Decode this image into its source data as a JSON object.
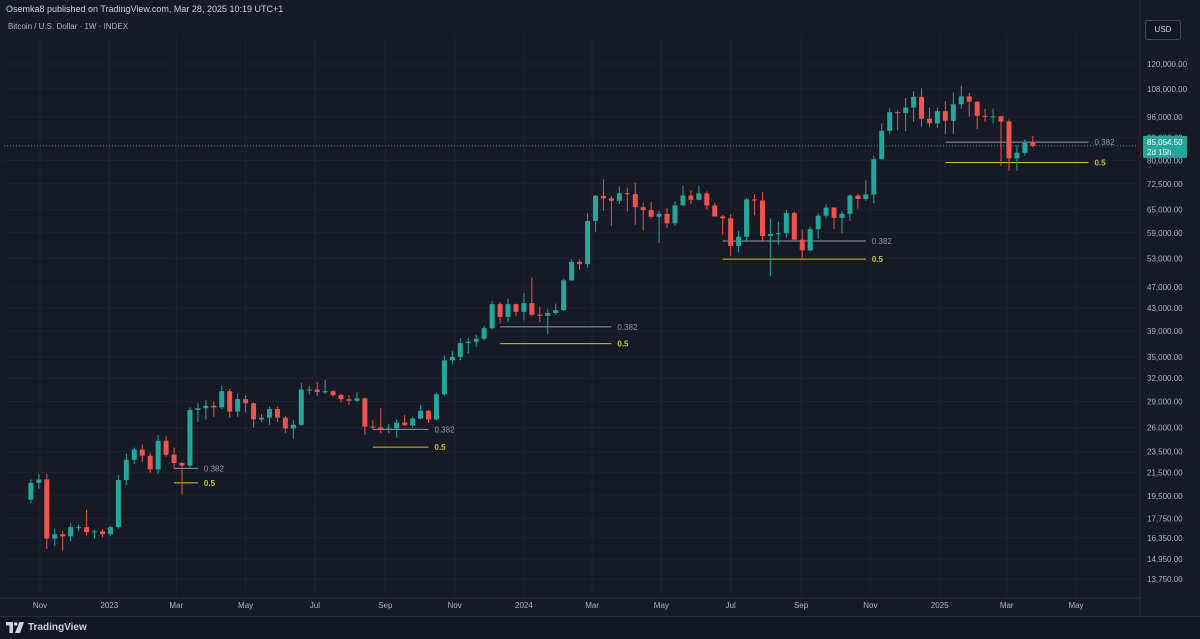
{
  "header": {
    "publisher": "Osemka8 published on TradingView.com, Mar 28, 2025 10:19 UTC+1",
    "symbol": "Bitcoin / U.S. Dollar · 1W · INDEX",
    "currency": "USD"
  },
  "footer": {
    "brand": "TradingView",
    "logo_icon": "tradingview-logo-icon"
  },
  "colors": {
    "up": "#26a69a",
    "down": "#ef5350",
    "fib382": "#9598a1",
    "fib05": "#d4c22c",
    "background": "#161a25",
    "grid": "#1f2330",
    "price_tag": "#26a69a"
  },
  "chart_data": {
    "type": "candlestick",
    "x_ticks": [
      "Nov",
      "2023",
      "Mar",
      "May",
      "Jul",
      "Sep",
      "Nov",
      "2024",
      "Mar",
      "May",
      "Jul",
      "Sep",
      "Nov",
      "2025",
      "Mar",
      "May"
    ],
    "x_tick_dates": [
      "2022-11-01",
      "2023-01-01",
      "2023-03-01",
      "2023-05-01",
      "2023-07-01",
      "2023-09-01",
      "2023-11-01",
      "2024-01-01",
      "2024-03-01",
      "2024-05-01",
      "2024-07-01",
      "2024-09-01",
      "2024-11-01",
      "2025-01-01",
      "2025-03-01",
      "2025-05-01"
    ],
    "y_ticks": [
      "120,000.00",
      "108,000.00",
      "96,000.00",
      "88,000.00",
      "80,000.00",
      "72,500.00",
      "65,000.00",
      "59,000.00",
      "53,000.00",
      "47,000.00",
      "43,000.00",
      "39,000.00",
      "35,000.00",
      "32,000.00",
      "29,000.00",
      "26,000.00",
      "23,500.00",
      "21,500.00",
      "19,500.00",
      "17,750.00",
      "16,350.00",
      "14,950.00",
      "13,750.00"
    ],
    "y_tick_values": [
      120000,
      108000,
      96000,
      88000,
      80000,
      72500,
      65000,
      59000,
      53000,
      47000,
      43000,
      39000,
      35000,
      32000,
      29000,
      26000,
      23500,
      21500,
      19500,
      17750,
      16350,
      14950,
      13750
    ],
    "y_scale": "log",
    "ylim": [
      12800,
      135000
    ],
    "last_price": {
      "value": 85054.5,
      "label": "85,054.50",
      "countdown": "2d 15h"
    },
    "candles": [
      {
        "t": "2022-10-24",
        "o": 19200,
        "h": 20900,
        "l": 18900,
        "c": 20600
      },
      {
        "t": "2022-10-31",
        "o": 20600,
        "h": 21400,
        "l": 20100,
        "c": 20900
      },
      {
        "t": "2022-11-07",
        "o": 20900,
        "h": 21400,
        "l": 15600,
        "c": 16300
      },
      {
        "t": "2022-11-14",
        "o": 16300,
        "h": 17000,
        "l": 15800,
        "c": 16600
      },
      {
        "t": "2022-11-21",
        "o": 16600,
        "h": 16800,
        "l": 15500,
        "c": 16450
      },
      {
        "t": "2022-11-28",
        "o": 16450,
        "h": 17400,
        "l": 16100,
        "c": 17100
      },
      {
        "t": "2022-12-05",
        "o": 17100,
        "h": 17300,
        "l": 16800,
        "c": 17100
      },
      {
        "t": "2022-12-12",
        "o": 17100,
        "h": 18400,
        "l": 16500,
        "c": 16750
      },
      {
        "t": "2022-12-19",
        "o": 16750,
        "h": 16900,
        "l": 16300,
        "c": 16800
      },
      {
        "t": "2022-12-26",
        "o": 16800,
        "h": 16950,
        "l": 16400,
        "c": 16600
      },
      {
        "t": "2023-01-02",
        "o": 16600,
        "h": 17200,
        "l": 16500,
        "c": 17100
      },
      {
        "t": "2023-01-09",
        "o": 17100,
        "h": 21300,
        "l": 17000,
        "c": 20850
      },
      {
        "t": "2023-01-16",
        "o": 20850,
        "h": 23300,
        "l": 20400,
        "c": 22700
      },
      {
        "t": "2023-01-23",
        "o": 22700,
        "h": 23900,
        "l": 22300,
        "c": 23700
      },
      {
        "t": "2023-01-30",
        "o": 23700,
        "h": 24200,
        "l": 22500,
        "c": 23100
      },
      {
        "t": "2023-02-06",
        "o": 23100,
        "h": 23400,
        "l": 21500,
        "c": 21800
      },
      {
        "t": "2023-02-13",
        "o": 21800,
        "h": 25200,
        "l": 21400,
        "c": 24600
      },
      {
        "t": "2023-02-20",
        "o": 24600,
        "h": 25100,
        "l": 23000,
        "c": 23200
      },
      {
        "t": "2023-02-27",
        "o": 23200,
        "h": 23900,
        "l": 21900,
        "c": 22400
      },
      {
        "t": "2023-03-06",
        "o": 22400,
        "h": 22500,
        "l": 19600,
        "c": 22150
      },
      {
        "t": "2023-03-13",
        "o": 22150,
        "h": 28300,
        "l": 21900,
        "c": 28000
      },
      {
        "t": "2023-03-20",
        "o": 28000,
        "h": 28800,
        "l": 26600,
        "c": 28200
      },
      {
        "t": "2023-03-27",
        "o": 28200,
        "h": 29200,
        "l": 26900,
        "c": 28500
      },
      {
        "t": "2023-04-03",
        "o": 28500,
        "h": 29000,
        "l": 27200,
        "c": 28300
      },
      {
        "t": "2023-04-10",
        "o": 28300,
        "h": 31000,
        "l": 28100,
        "c": 30300
      },
      {
        "t": "2023-04-17",
        "o": 30300,
        "h": 30600,
        "l": 27100,
        "c": 27800
      },
      {
        "t": "2023-04-24",
        "o": 27800,
        "h": 30000,
        "l": 27200,
        "c": 29300
      },
      {
        "t": "2023-05-01",
        "o": 29300,
        "h": 29800,
        "l": 27700,
        "c": 28800
      },
      {
        "t": "2023-05-08",
        "o": 28800,
        "h": 28900,
        "l": 26000,
        "c": 26900
      },
      {
        "t": "2023-05-15",
        "o": 26900,
        "h": 27500,
        "l": 26600,
        "c": 27100
      },
      {
        "t": "2023-05-22",
        "o": 27100,
        "h": 28400,
        "l": 26300,
        "c": 28100
      },
      {
        "t": "2023-05-29",
        "o": 28100,
        "h": 28400,
        "l": 26600,
        "c": 27100
      },
      {
        "t": "2023-06-05",
        "o": 27100,
        "h": 27300,
        "l": 25400,
        "c": 25900
      },
      {
        "t": "2023-06-12",
        "o": 25900,
        "h": 26800,
        "l": 24800,
        "c": 26300
      },
      {
        "t": "2023-06-19",
        "o": 26300,
        "h": 31400,
        "l": 26200,
        "c": 30500
      },
      {
        "t": "2023-06-26",
        "o": 30500,
        "h": 31000,
        "l": 29900,
        "c": 30500
      },
      {
        "t": "2023-07-03",
        "o": 30500,
        "h": 31500,
        "l": 29700,
        "c": 30200
      },
      {
        "t": "2023-07-10",
        "o": 30200,
        "h": 31800,
        "l": 29950,
        "c": 30300
      },
      {
        "t": "2023-07-17",
        "o": 30300,
        "h": 30400,
        "l": 29600,
        "c": 29800
      },
      {
        "t": "2023-07-24",
        "o": 29800,
        "h": 30000,
        "l": 28900,
        "c": 29300
      },
      {
        "t": "2023-07-31",
        "o": 29300,
        "h": 29800,
        "l": 28600,
        "c": 29100
      },
      {
        "t": "2023-08-07",
        "o": 29100,
        "h": 30200,
        "l": 28900,
        "c": 29400
      },
      {
        "t": "2023-08-14",
        "o": 29400,
        "h": 29500,
        "l": 25200,
        "c": 26100
      },
      {
        "t": "2023-08-21",
        "o": 26100,
        "h": 26800,
        "l": 25800,
        "c": 26000
      },
      {
        "t": "2023-08-28",
        "o": 26000,
        "h": 28200,
        "l": 25400,
        "c": 25800
      },
      {
        "t": "2023-09-04",
        "o": 25800,
        "h": 26400,
        "l": 25400,
        "c": 25900
      },
      {
        "t": "2023-09-11",
        "o": 25900,
        "h": 26900,
        "l": 24900,
        "c": 26550
      },
      {
        "t": "2023-09-18",
        "o": 26550,
        "h": 27400,
        "l": 26200,
        "c": 26250
      },
      {
        "t": "2023-09-25",
        "o": 26250,
        "h": 27200,
        "l": 26000,
        "c": 27000
      },
      {
        "t": "2023-10-02",
        "o": 27000,
        "h": 28600,
        "l": 26900,
        "c": 27900
      },
      {
        "t": "2023-10-09",
        "o": 27900,
        "h": 28000,
        "l": 26500,
        "c": 26900
      },
      {
        "t": "2023-10-16",
        "o": 26900,
        "h": 30100,
        "l": 26800,
        "c": 29900
      },
      {
        "t": "2023-10-23",
        "o": 29900,
        "h": 35200,
        "l": 29700,
        "c": 34500
      },
      {
        "t": "2023-10-30",
        "o": 34500,
        "h": 35900,
        "l": 33900,
        "c": 35000
      },
      {
        "t": "2023-11-06",
        "o": 35000,
        "h": 37900,
        "l": 34500,
        "c": 37100
      },
      {
        "t": "2023-11-13",
        "o": 37100,
        "h": 37900,
        "l": 35500,
        "c": 37300
      },
      {
        "t": "2023-11-20",
        "o": 37300,
        "h": 38400,
        "l": 36500,
        "c": 37800
      },
      {
        "t": "2023-11-27",
        "o": 37800,
        "h": 39900,
        "l": 37500,
        "c": 39500
      },
      {
        "t": "2023-12-04",
        "o": 39500,
        "h": 44300,
        "l": 39300,
        "c": 43700
      },
      {
        "t": "2023-12-11",
        "o": 43700,
        "h": 44100,
        "l": 40300,
        "c": 41400
      },
      {
        "t": "2023-12-18",
        "o": 41400,
        "h": 44700,
        "l": 40500,
        "c": 43700
      },
      {
        "t": "2023-12-25",
        "o": 43700,
        "h": 43800,
        "l": 41600,
        "c": 42300
      },
      {
        "t": "2024-01-01",
        "o": 42300,
        "h": 45800,
        "l": 40800,
        "c": 43900
      },
      {
        "t": "2024-01-08",
        "o": 43900,
        "h": 48900,
        "l": 41500,
        "c": 41800
      },
      {
        "t": "2024-01-15",
        "o": 41800,
        "h": 43200,
        "l": 40500,
        "c": 41600
      },
      {
        "t": "2024-01-22",
        "o": 41600,
        "h": 42800,
        "l": 38500,
        "c": 42100
      },
      {
        "t": "2024-01-29",
        "o": 42100,
        "h": 43800,
        "l": 41800,
        "c": 42600
      },
      {
        "t": "2024-02-05",
        "o": 42600,
        "h": 48600,
        "l": 42500,
        "c": 48300
      },
      {
        "t": "2024-02-12",
        "o": 48300,
        "h": 52800,
        "l": 48200,
        "c": 52200
      },
      {
        "t": "2024-02-19",
        "o": 52200,
        "h": 52700,
        "l": 50500,
        "c": 51700
      },
      {
        "t": "2024-02-26",
        "o": 51700,
        "h": 64000,
        "l": 50900,
        "c": 62000
      },
      {
        "t": "2024-03-04",
        "o": 62000,
        "h": 69200,
        "l": 59200,
        "c": 68900
      },
      {
        "t": "2024-03-11",
        "o": 68900,
        "h": 73800,
        "l": 64700,
        "c": 68200
      },
      {
        "t": "2024-03-18",
        "o": 68200,
        "h": 68900,
        "l": 60800,
        "c": 67500
      },
      {
        "t": "2024-03-25",
        "o": 67500,
        "h": 71700,
        "l": 66600,
        "c": 69700
      },
      {
        "t": "2024-04-01",
        "o": 69700,
        "h": 71300,
        "l": 64500,
        "c": 69400
      },
      {
        "t": "2024-04-08",
        "o": 69400,
        "h": 72800,
        "l": 61000,
        "c": 65700
      },
      {
        "t": "2024-04-15",
        "o": 65700,
        "h": 66900,
        "l": 59600,
        "c": 64900
      },
      {
        "t": "2024-04-22",
        "o": 64900,
        "h": 67200,
        "l": 62500,
        "c": 63100
      },
      {
        "t": "2024-04-29",
        "o": 63100,
        "h": 64700,
        "l": 56500,
        "c": 63900
      },
      {
        "t": "2024-05-06",
        "o": 63900,
        "h": 65500,
        "l": 60200,
        "c": 61400
      },
      {
        "t": "2024-05-13",
        "o": 61400,
        "h": 67400,
        "l": 60800,
        "c": 66200
      },
      {
        "t": "2024-05-20",
        "o": 66200,
        "h": 71900,
        "l": 66100,
        "c": 69000
      },
      {
        "t": "2024-05-27",
        "o": 69000,
        "h": 70600,
        "l": 66500,
        "c": 67800
      },
      {
        "t": "2024-06-03",
        "o": 67800,
        "h": 71900,
        "l": 67600,
        "c": 69600
      },
      {
        "t": "2024-06-10",
        "o": 69600,
        "h": 70200,
        "l": 65000,
        "c": 66200
      },
      {
        "t": "2024-06-17",
        "o": 66200,
        "h": 66900,
        "l": 63400,
        "c": 63200
      },
      {
        "t": "2024-06-24",
        "o": 63200,
        "h": 63600,
        "l": 58500,
        "c": 62700
      },
      {
        "t": "2024-07-01",
        "o": 62700,
        "h": 63800,
        "l": 53500,
        "c": 55800
      },
      {
        "t": "2024-07-08",
        "o": 55800,
        "h": 59500,
        "l": 54300,
        "c": 58000
      },
      {
        "t": "2024-07-15",
        "o": 58000,
        "h": 68300,
        "l": 57100,
        "c": 67900
      },
      {
        "t": "2024-07-22",
        "o": 67900,
        "h": 69400,
        "l": 63500,
        "c": 67600
      },
      {
        "t": "2024-07-29",
        "o": 67600,
        "h": 70000,
        "l": 57100,
        "c": 58200
      },
      {
        "t": "2024-08-05",
        "o": 58200,
        "h": 62700,
        "l": 49100,
        "c": 58700
      },
      {
        "t": "2024-08-12",
        "o": 58700,
        "h": 61800,
        "l": 56200,
        "c": 58900
      },
      {
        "t": "2024-08-19",
        "o": 58900,
        "h": 65000,
        "l": 57800,
        "c": 64100
      },
      {
        "t": "2024-08-26",
        "o": 64100,
        "h": 64500,
        "l": 57200,
        "c": 57300
      },
      {
        "t": "2024-09-02",
        "o": 57300,
        "h": 59800,
        "l": 52600,
        "c": 54800
      },
      {
        "t": "2024-09-09",
        "o": 54800,
        "h": 60500,
        "l": 54600,
        "c": 59900
      },
      {
        "t": "2024-09-16",
        "o": 59900,
        "h": 64100,
        "l": 57500,
        "c": 63400
      },
      {
        "t": "2024-09-23",
        "o": 63400,
        "h": 66500,
        "l": 62700,
        "c": 65600
      },
      {
        "t": "2024-09-30",
        "o": 65600,
        "h": 65600,
        "l": 59900,
        "c": 62800
      },
      {
        "t": "2024-10-07",
        "o": 62800,
        "h": 64500,
        "l": 58900,
        "c": 63900
      },
      {
        "t": "2024-10-14",
        "o": 63900,
        "h": 69400,
        "l": 62000,
        "c": 69000
      },
      {
        "t": "2024-10-21",
        "o": 69000,
        "h": 69500,
        "l": 65300,
        "c": 68000
      },
      {
        "t": "2024-10-28",
        "o": 68000,
        "h": 73600,
        "l": 67500,
        "c": 69300
      },
      {
        "t": "2024-11-04",
        "o": 69300,
        "h": 81500,
        "l": 66800,
        "c": 80400
      },
      {
        "t": "2024-11-11",
        "o": 80400,
        "h": 93500,
        "l": 80200,
        "c": 90600
      },
      {
        "t": "2024-11-18",
        "o": 90600,
        "h": 99600,
        "l": 89500,
        "c": 98000
      },
      {
        "t": "2024-11-25",
        "o": 98000,
        "h": 98800,
        "l": 90800,
        "c": 97600
      },
      {
        "t": "2024-12-02",
        "o": 97600,
        "h": 104000,
        "l": 90500,
        "c": 99900
      },
      {
        "t": "2024-12-09",
        "o": 99900,
        "h": 107000,
        "l": 94200,
        "c": 104500
      },
      {
        "t": "2024-12-16",
        "o": 104500,
        "h": 108300,
        "l": 92200,
        "c": 95300
      },
      {
        "t": "2024-12-23",
        "o": 95300,
        "h": 99900,
        "l": 92000,
        "c": 93500
      },
      {
        "t": "2024-12-30",
        "o": 93500,
        "h": 99900,
        "l": 91800,
        "c": 98400
      },
      {
        "t": "2025-01-06",
        "o": 98400,
        "h": 102700,
        "l": 89300,
        "c": 94500
      },
      {
        "t": "2025-01-13",
        "o": 94500,
        "h": 106400,
        "l": 89300,
        "c": 101300
      },
      {
        "t": "2025-01-20",
        "o": 101300,
        "h": 109500,
        "l": 99400,
        "c": 104700
      },
      {
        "t": "2025-01-27",
        "o": 104700,
        "h": 106300,
        "l": 96200,
        "c": 102400
      },
      {
        "t": "2025-02-03",
        "o": 102400,
        "h": 102500,
        "l": 91200,
        "c": 96500
      },
      {
        "t": "2025-02-10",
        "o": 96500,
        "h": 99400,
        "l": 94100,
        "c": 96100
      },
      {
        "t": "2025-02-17",
        "o": 96100,
        "h": 99500,
        "l": 93400,
        "c": 96300
      },
      {
        "t": "2025-02-24",
        "o": 96300,
        "h": 96500,
        "l": 78200,
        "c": 94200
      },
      {
        "t": "2025-03-03",
        "o": 94200,
        "h": 95000,
        "l": 76600,
        "c": 80700
      },
      {
        "t": "2025-03-10",
        "o": 80700,
        "h": 85300,
        "l": 76600,
        "c": 82600
      },
      {
        "t": "2025-03-17",
        "o": 82600,
        "h": 87400,
        "l": 81600,
        "c": 86100
      },
      {
        "t": "2025-03-24",
        "o": 86100,
        "h": 88700,
        "l": 84500,
        "c": 85054.5
      }
    ],
    "fib_levels": [
      {
        "from": "2023-02-27",
        "to": "2023-03-20",
        "price": 21900,
        "label": "0.382",
        "color": "fib382"
      },
      {
        "from": "2023-02-27",
        "to": "2023-03-20",
        "price": 20600,
        "label": "0.5",
        "color": "fib05"
      },
      {
        "from": "2023-08-21",
        "to": "2023-10-09",
        "price": 25800,
        "label": "0.382",
        "color": "fib382"
      },
      {
        "from": "2023-08-21",
        "to": "2023-10-09",
        "price": 23950,
        "label": "0.5",
        "color": "fib05"
      },
      {
        "from": "2023-12-11",
        "to": "2024-03-18",
        "price": 39700,
        "label": "0.382",
        "color": "fib382"
      },
      {
        "from": "2023-12-11",
        "to": "2024-03-18",
        "price": 37000,
        "label": "0.5",
        "color": "fib05"
      },
      {
        "from": "2024-06-24",
        "to": "2024-10-28",
        "price": 57000,
        "label": "0.382",
        "color": "fib382"
      },
      {
        "from": "2024-06-24",
        "to": "2024-10-28",
        "price": 52800,
        "label": "0.5",
        "color": "fib05"
      },
      {
        "from": "2025-01-06",
        "to": "2025-05-12",
        "price": 86400,
        "label": "0.382",
        "color": "fib382"
      },
      {
        "from": "2025-01-06",
        "to": "2025-05-12",
        "price": 79300,
        "label": "0.5",
        "color": "fib05"
      }
    ]
  }
}
